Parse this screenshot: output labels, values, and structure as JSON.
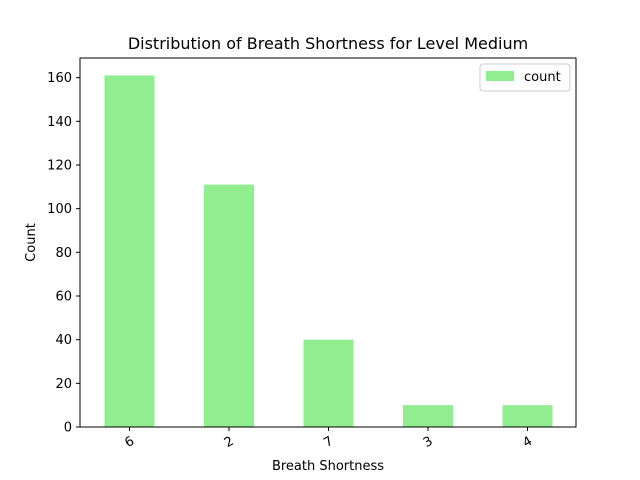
{
  "chart_data": {
    "type": "bar",
    "title": "Distribution of Breath Shortness for Level Medium",
    "xlabel": "Breath Shortness",
    "ylabel": "Count",
    "categories": [
      "6",
      "2",
      "7",
      "3",
      "4"
    ],
    "series": [
      {
        "name": "count",
        "values": [
          161,
          111,
          40,
          10,
          10
        ],
        "color": "#90ee90"
      }
    ],
    "ylim": [
      0,
      169
    ],
    "yticks": [
      0,
      20,
      40,
      60,
      80,
      100,
      120,
      140,
      160
    ],
    "legend": "top-right",
    "grid": false
  }
}
